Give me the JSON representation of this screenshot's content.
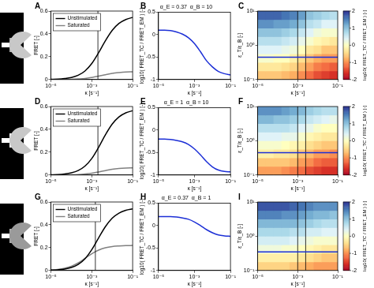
{
  "chart_data": [
    {
      "panel_label": "A",
      "type": "line",
      "x_label": "κ [s⁻¹]",
      "y_label": "FRET [-]",
      "log": "x",
      "grid": false,
      "legend": "upper left",
      "x": [
        1e-05,
        2.15e-05,
        4.64e-05,
        0.0001,
        0.000215,
        0.000464,
        0.001,
        0.00215,
        0.00464,
        0.01,
        0.0215,
        0.0464,
        0.1
      ],
      "series": [
        {
          "name": "Unstimulated",
          "color": "#000000",
          "values": [
            0.002,
            0.004,
            0.009,
            0.018,
            0.037,
            0.075,
            0.14,
            0.234,
            0.34,
            0.431,
            0.492,
            0.526,
            0.544
          ]
        },
        {
          "name": "Saturated",
          "color": "#808080",
          "values": [
            0,
            0,
            0.001,
            0.002,
            0.005,
            0.009,
            0.018,
            0.029,
            0.042,
            0.054,
            0.061,
            0.066,
            0.068
          ]
        }
      ],
      "xlim": [
        1e-05,
        0.1
      ],
      "xticks": [
        {
          "value": 1e-05,
          "label": "10⁻⁵"
        },
        {
          "value": 0.001,
          "label": "10⁻³"
        },
        {
          "value": 0.1,
          "label": "10⁻¹"
        }
      ],
      "ylim": [
        0,
        0.6
      ],
      "yticks": [
        0,
        0.2,
        0.4,
        0.6
      ],
      "reference_x": [
        0.002
      ]
    },
    {
      "panel_label": "B",
      "type": "line",
      "title": "α_E = 0.37  α_B = 10",
      "x_label": "κ [s⁻¹]",
      "y_label": "log10( FRET_TC / FRET_EM ) [-]",
      "log": "x",
      "grid": false,
      "x": [
        1e-05,
        2.15e-05,
        4.64e-05,
        0.0001,
        0.000215,
        0.000464,
        0.001,
        0.00215,
        0.00464,
        0.01,
        0.0215,
        0.0464,
        0.1
      ],
      "color": "#1c2fd6",
      "values": [
        0.1,
        0.1,
        0.09,
        0.06,
        0.01,
        -0.07,
        -0.2,
        -0.38,
        -0.58,
        -0.72,
        -0.82,
        -0.87,
        -0.9
      ],
      "xlim": [
        1e-05,
        0.1
      ],
      "xticks": [
        {
          "value": 1e-05,
          "label": "10⁻⁵"
        },
        {
          "value": 0.001,
          "label": "10⁻³"
        },
        {
          "value": 0.1,
          "label": "10⁻¹"
        }
      ],
      "ylim": [
        -1,
        0.5
      ],
      "yticks": [
        -1,
        -0.5,
        0,
        0.5
      ]
    },
    {
      "panel_label": "C",
      "type": "heatmap",
      "x_label": "κ [s⁻¹]",
      "y_label": "ε_T/ε_B [-]",
      "log": true,
      "grid": false,
      "x_bins": [
        1e-05,
        2.51e-05,
        6.31e-05,
        0.000158,
        0.000398,
        0.001,
        0.00251,
        0.00631,
        0.0158,
        0.0398,
        0.1
      ],
      "y_bins": [
        0.1,
        0.178,
        0.316,
        0.562,
        1,
        1.78,
        3.16,
        5.62,
        10
      ],
      "cells": [
        [
          -0.6,
          -0.6,
          -0.6,
          -0.7,
          -0.8,
          -1.0,
          -1.2,
          -1.4,
          -1.5,
          -1.6
        ],
        [
          -0.3,
          -0.3,
          -0.3,
          -0.4,
          -0.5,
          -0.7,
          -0.9,
          -1.1,
          -1.2,
          -1.3
        ],
        [
          0.1,
          0.1,
          0.0,
          0.0,
          -0.2,
          -0.4,
          -0.6,
          -0.8,
          -0.9,
          -0.9
        ],
        [
          0.4,
          0.4,
          0.4,
          0.3,
          0.2,
          0.0,
          -0.3,
          -0.4,
          -0.6,
          -0.6
        ],
        [
          0.7,
          0.7,
          0.7,
          0.6,
          0.5,
          0.3,
          0.1,
          -0.1,
          -0.2,
          -0.3
        ],
        [
          1.0,
          1.0,
          1.0,
          0.9,
          0.8,
          0.6,
          0.4,
          0.2,
          0.1,
          0.1
        ],
        [
          1.4,
          1.4,
          1.3,
          1.3,
          1.2,
          1.0,
          0.7,
          0.6,
          0.4,
          0.4
        ],
        [
          1.7,
          1.7,
          1.7,
          1.6,
          1.5,
          1.3,
          1.0,
          0.9,
          0.8,
          0.7
        ]
      ],
      "colorbar": {
        "label": "log10( FRET_TC / FRET_EM ) [-]",
        "range": [
          -2,
          2
        ],
        "ticks": [
          -2,
          -1,
          0,
          1,
          2
        ]
      },
      "xlim": [
        1e-05,
        0.1
      ],
      "xticks": [
        {
          "value": 1e-05,
          "label": "10⁻⁵"
        },
        {
          "value": 0.001,
          "label": "10⁻³"
        },
        {
          "value": 0.1,
          "label": "10⁻¹"
        }
      ],
      "ylim": [
        0.1,
        10
      ],
      "yticks": [
        {
          "value": 0.1,
          "label": "10⁻¹"
        },
        {
          "value": 1,
          "label": "10⁰"
        },
        {
          "value": 10,
          "label": "10¹"
        }
      ],
      "reference_x": [
        0.001,
        0.0025
      ],
      "reference_y": [
        0.45
      ]
    },
    {
      "panel_label": "D",
      "type": "line",
      "x_label": "κ [s⁻¹]",
      "y_label": "FRET [-]",
      "log": "x",
      "grid": false,
      "legend": "upper left",
      "x": [
        1e-05,
        2.15e-05,
        4.64e-05,
        0.0001,
        0.000215,
        0.000464,
        0.001,
        0.00215,
        0.00464,
        0.01,
        0.0215,
        0.0464,
        0.1
      ],
      "series": [
        {
          "name": "Unstimulated",
          "color": "#000000",
          "values": [
            0.002,
            0.004,
            0.009,
            0.019,
            0.039,
            0.078,
            0.145,
            0.242,
            0.352,
            0.446,
            0.509,
            0.545,
            0.563
          ]
        },
        {
          "name": "Saturated",
          "color": "#808080",
          "values": [
            0,
            0,
            0.001,
            0.002,
            0.004,
            0.009,
            0.016,
            0.027,
            0.039,
            0.05,
            0.057,
            0.061,
            0.063
          ]
        }
      ],
      "xlim": [
        1e-05,
        0.1
      ],
      "xticks": [
        {
          "value": 1e-05,
          "label": "10⁻⁵"
        },
        {
          "value": 0.001,
          "label": "10⁻³"
        },
        {
          "value": 0.1,
          "label": "10⁻¹"
        }
      ],
      "ylim": [
        0,
        0.6
      ],
      "yticks": [
        0,
        0.2,
        0.4,
        0.6
      ],
      "reference_x": [
        0.002
      ]
    },
    {
      "panel_label": "E",
      "type": "line",
      "title": "α_E = 1  α_B = 10",
      "x_label": "κ [s⁻¹]",
      "y_label": "log10( FRET_TC / FRET_EM ) [-]",
      "log": "x",
      "grid": false,
      "x": [
        1e-05,
        2.15e-05,
        4.64e-05,
        0.0001,
        0.000215,
        0.000464,
        0.001,
        0.00215,
        0.00464,
        0.01,
        0.0215,
        0.0464,
        0.1
      ],
      "color": "#1c2fd6",
      "values": [
        -0.2,
        -0.2,
        -0.21,
        -0.23,
        -0.26,
        -0.32,
        -0.42,
        -0.55,
        -0.7,
        -0.82,
        -0.89,
        -0.92,
        -0.93
      ],
      "xlim": [
        1e-05,
        0.1
      ],
      "xticks": [
        {
          "value": 1e-05,
          "label": "10⁻⁵"
        },
        {
          "value": 0.001,
          "label": "10⁻³"
        },
        {
          "value": 0.1,
          "label": "10⁻¹"
        }
      ],
      "ylim": [
        -1,
        0.5
      ],
      "yticks": [
        -1,
        -0.5,
        0,
        0.5
      ]
    },
    {
      "panel_label": "F",
      "type": "heatmap",
      "x_label": "κ [s⁻¹]",
      "y_label": "ε_T/ε_B [-]",
      "log": true,
      "grid": false,
      "x_bins": [
        1e-05,
        2.51e-05,
        6.31e-05,
        0.000158,
        0.000398,
        0.001,
        0.00251,
        0.00631,
        0.0158,
        0.0398,
        0.1
      ],
      "y_bins": [
        0.1,
        0.178,
        0.316,
        0.562,
        1,
        1.78,
        3.16,
        5.62,
        10
      ],
      "cells": [
        [
          -0.9,
          -0.9,
          -0.9,
          -1.0,
          -1.1,
          -1.2,
          -1.4,
          -1.5,
          -1.6,
          -1.6
        ],
        [
          -0.6,
          -0.6,
          -0.6,
          -0.6,
          -0.7,
          -0.9,
          -1.0,
          -1.2,
          -1.3,
          -1.3
        ],
        [
          -0.2,
          -0.2,
          -0.3,
          -0.3,
          -0.4,
          -0.6,
          -0.7,
          -0.9,
          -0.9,
          -1.0
        ],
        [
          0.1,
          0.1,
          0.1,
          0.0,
          -0.1,
          -0.2,
          -0.4,
          -0.5,
          -0.6,
          -0.6
        ],
        [
          0.4,
          0.4,
          0.4,
          0.3,
          0.3,
          0.1,
          -0.1,
          -0.2,
          -0.3,
          -0.3
        ],
        [
          0.7,
          0.7,
          0.7,
          0.7,
          0.6,
          0.4,
          0.3,
          0.1,
          0.0,
          0.0
        ],
        [
          1.1,
          1.1,
          1.0,
          1.0,
          0.9,
          0.8,
          0.6,
          0.5,
          0.4,
          0.3
        ],
        [
          1.4,
          1.4,
          1.4,
          1.3,
          1.2,
          1.1,
          0.9,
          0.8,
          0.7,
          0.7
        ]
      ],
      "colorbar": {
        "label": "log10( FRET_TC / FRET_EM ) [-]",
        "range": [
          -2,
          2
        ],
        "ticks": [
          -2,
          -1,
          0,
          1,
          2
        ]
      },
      "xlim": [
        1e-05,
        0.1
      ],
      "xticks": [
        {
          "value": 1e-05,
          "label": "10⁻⁵"
        },
        {
          "value": 0.001,
          "label": "10⁻³"
        },
        {
          "value": 0.1,
          "label": "10⁻¹"
        }
      ],
      "ylim": [
        0.1,
        10
      ],
      "yticks": [
        {
          "value": 0.1,
          "label": "10⁻¹"
        },
        {
          "value": 1,
          "label": "10⁰"
        },
        {
          "value": 10,
          "label": "10¹"
        }
      ],
      "reference_x": [
        0.001,
        0.0025
      ],
      "reference_y": [
        0.45
      ]
    },
    {
      "panel_label": "G",
      "type": "line",
      "x_label": "κ [s⁻¹]",
      "y_label": "FRET [-]",
      "log": "x",
      "grid": false,
      "legend": "upper left",
      "x": [
        1e-05,
        2.15e-05,
        4.64e-05,
        0.0001,
        0.000215,
        0.000464,
        0.001,
        0.00215,
        0.00464,
        0.01,
        0.0215,
        0.0464,
        0.1
      ],
      "series": [
        {
          "name": "Unstimulated",
          "color": "#000000",
          "values": [
            0.003,
            0.006,
            0.012,
            0.026,
            0.053,
            0.103,
            0.183,
            0.285,
            0.384,
            0.458,
            0.503,
            0.527,
            0.539
          ]
        },
        {
          "name": "Saturated",
          "color": "#808080",
          "values": [
            0.004,
            0.009,
            0.019,
            0.037,
            0.066,
            0.106,
            0.147,
            0.178,
            0.199,
            0.21,
            0.215,
            0.218,
            0.219
          ]
        }
      ],
      "xlim": [
        1e-05,
        0.1
      ],
      "xticks": [
        {
          "value": 1e-05,
          "label": "10⁻⁵"
        },
        {
          "value": 0.001,
          "label": "10⁻³"
        },
        {
          "value": 0.1,
          "label": "10⁻¹"
        }
      ],
      "ylim": [
        0,
        0.6
      ],
      "yticks": [
        0,
        0.2,
        0.4,
        0.6
      ],
      "reference_x": [
        0.0015
      ]
    },
    {
      "panel_label": "H",
      "type": "line",
      "title": "α_E = 0.37  α_B = 1",
      "x_label": "κ [s⁻¹]",
      "y_label": "log10( FRET_TC / FRET_EM ) [-]",
      "log": "x",
      "grid": false,
      "x": [
        1e-05,
        2.15e-05,
        4.64e-05,
        0.0001,
        0.000215,
        0.000464,
        0.001,
        0.00215,
        0.00464,
        0.01,
        0.0215,
        0.0464,
        0.1
      ],
      "color": "#1c2fd6",
      "values": [
        0.2,
        0.2,
        0.2,
        0.19,
        0.17,
        0.14,
        0.08,
        0.0,
        -0.09,
        -0.16,
        -0.21,
        -0.23,
        -0.24
      ],
      "xlim": [
        1e-05,
        0.1
      ],
      "xticks": [
        {
          "value": 1e-05,
          "label": "10⁻⁵"
        },
        {
          "value": 0.001,
          "label": "10⁻³"
        },
        {
          "value": 0.1,
          "label": "10⁻¹"
        }
      ],
      "ylim": [
        -1,
        0.5
      ],
      "yticks": [
        -1,
        -0.5,
        0,
        0.5
      ]
    },
    {
      "panel_label": "I",
      "type": "heatmap",
      "x_label": "κ [s⁻¹]",
      "y_label": "ε_T/ε_B [-]",
      "log": true,
      "grid": false,
      "x_bins": [
        1e-05,
        2.51e-05,
        6.31e-05,
        0.000158,
        0.000398,
        0.001,
        0.00251,
        0.00631,
        0.0158,
        0.0398,
        0.1
      ],
      "y_bins": [
        0.1,
        0.178,
        0.316,
        0.562,
        1,
        1.78,
        3.16,
        5.62,
        10
      ],
      "cells": [
        [
          -0.5,
          -0.5,
          -0.5,
          -0.5,
          -0.6,
          -0.7,
          -0.8,
          -0.9,
          -0.9,
          -0.9
        ],
        [
          -0.2,
          -0.2,
          -0.2,
          -0.2,
          -0.2,
          -0.3,
          -0.4,
          -0.5,
          -0.6,
          -0.6
        ],
        [
          0.2,
          0.2,
          0.2,
          0.1,
          0.1,
          0.0,
          -0.1,
          -0.2,
          -0.3,
          -0.3
        ],
        [
          0.5,
          0.5,
          0.5,
          0.5,
          0.4,
          0.3,
          0.2,
          0.1,
          0.1,
          0.1
        ],
        [
          0.8,
          0.8,
          0.8,
          0.8,
          0.7,
          0.7,
          0.5,
          0.5,
          0.4,
          0.4
        ],
        [
          1.1,
          1.1,
          1.1,
          1.1,
          1.1,
          1.0,
          0.9,
          0.8,
          0.7,
          0.7
        ],
        [
          1.5,
          1.5,
          1.5,
          1.4,
          1.4,
          1.3,
          1.2,
          1.1,
          1.1,
          1.0
        ],
        [
          1.8,
          1.8,
          1.8,
          1.8,
          1.7,
          1.6,
          1.5,
          1.4,
          1.4,
          1.4
        ]
      ],
      "colorbar": {
        "label": "log10( FRET_TC / FRET_EM ) [-]",
        "range": [
          -2,
          2
        ],
        "ticks": [
          -2,
          -1,
          0,
          1,
          2
        ]
      },
      "xlim": [
        1e-05,
        0.1
      ],
      "xticks": [
        {
          "value": 1e-05,
          "label": "10⁻⁵"
        },
        {
          "value": 0.001,
          "label": "10⁻³"
        },
        {
          "value": 0.1,
          "label": "10⁻¹"
        }
      ],
      "ylim": [
        0.1,
        10
      ],
      "yticks": [
        {
          "value": 0.1,
          "label": "10⁻¹"
        },
        {
          "value": 1,
          "label": "10⁰"
        },
        {
          "value": 10,
          "label": "10¹"
        }
      ],
      "reference_x": [
        0.001,
        0.0025
      ],
      "reference_y": [
        0.35
      ]
    }
  ]
}
